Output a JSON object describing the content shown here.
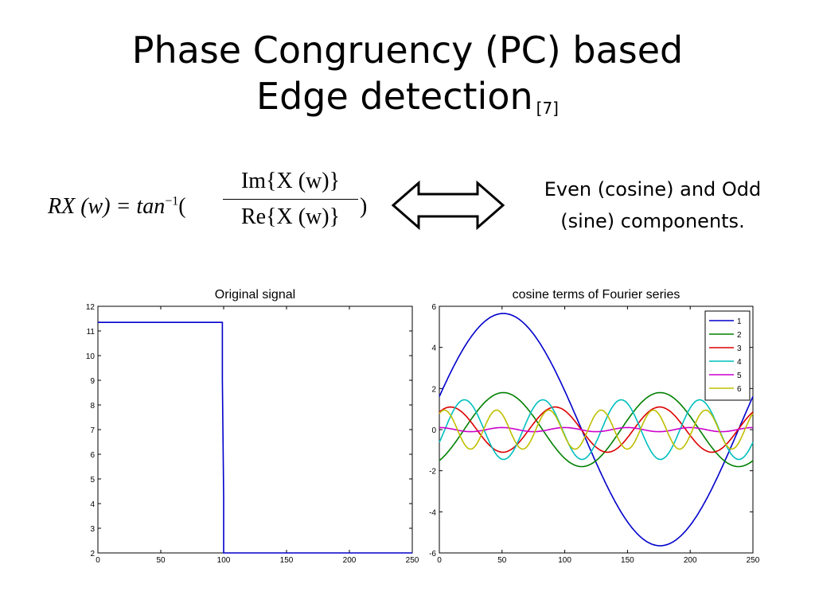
{
  "title": {
    "line1": "Phase Congruency (PC) based",
    "line2": "Edge detection",
    "reference": "[7]"
  },
  "formula": {
    "lhs": "RX (w) = tan",
    "exponent": "−1",
    "open_paren": "(",
    "numerator": "Im{X (w)}",
    "denominator": "Re{X (w)}",
    "close_paren": ")"
  },
  "description": {
    "line1": "Even (cosine) and Odd",
    "line2": "(sine) components."
  },
  "arrow_icon": "double-headed-arrow",
  "chart_data": [
    {
      "type": "line",
      "title": "Original signal",
      "xlim": [
        0,
        250
      ],
      "ylim": [
        2,
        12
      ],
      "xticks": [
        0,
        50,
        100,
        150,
        200,
        250
      ],
      "yticks": [
        2,
        3,
        4,
        5,
        6,
        7,
        8,
        9,
        10,
        11,
        12
      ],
      "grid": false,
      "series": [
        {
          "color": "#0000cc",
          "x": [
            0,
            99,
            99,
            100,
            100,
            250
          ],
          "y": [
            11.35,
            11.35,
            9,
            4.3,
            2,
            2
          ]
        }
      ]
    },
    {
      "type": "line",
      "title": "cosine terms of Fourier series",
      "xlim": [
        0,
        250
      ],
      "ylim": [
        -6,
        6
      ],
      "xticks": [
        0,
        50,
        100,
        150,
        200,
        250
      ],
      "yticks": [
        -6,
        -4,
        -2,
        0,
        2,
        4,
        6
      ],
      "grid": false,
      "legend_position": "top-right",
      "series": [
        {
          "name": "1",
          "color": "#0000cc",
          "amplitude": 5.65,
          "harmonic": 1,
          "period": 250,
          "peak_x": 51
        },
        {
          "name": "2",
          "color": "#008000",
          "amplitude": 1.8,
          "harmonic": 2,
          "period": 250,
          "peak_x": 51
        },
        {
          "name": "3",
          "color": "#dd0000",
          "amplitude": 1.1,
          "harmonic": 3,
          "period": 250,
          "peak_x": 9
        },
        {
          "name": "4",
          "color": "#00bfbf",
          "amplitude": 1.45,
          "harmonic": 4,
          "period": 250,
          "peak_x": 20
        },
        {
          "name": "5",
          "color": "#cc00cc",
          "amplitude": 0.1,
          "harmonic": 5,
          "period": 250,
          "peak_x": 0
        },
        {
          "name": "6",
          "color": "#bfbf00",
          "amplitude": 0.95,
          "harmonic": 6,
          "period": 250,
          "peak_x": 4
        }
      ]
    }
  ]
}
